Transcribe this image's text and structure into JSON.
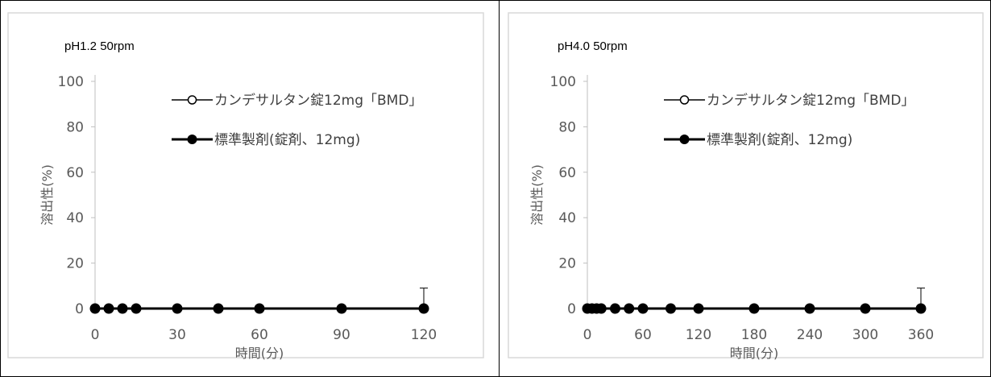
{
  "chart_data": [
    {
      "type": "line",
      "title": "pH1.2  50rpm",
      "xlabel": "時間(分)",
      "ylabel": "溶出性(%)",
      "xlim": [
        0,
        120
      ],
      "ylim": [
        0,
        100
      ],
      "xticks": [
        0,
        30,
        60,
        90,
        120
      ],
      "yticks": [
        0,
        20,
        40,
        60,
        80,
        100
      ],
      "legend_position": "top-right",
      "series": [
        {
          "name": "カンデサルタン錠12mg「BMD」",
          "marker": "open-circle",
          "x": [
            0,
            5,
            10,
            15,
            30,
            45,
            60,
            90,
            120
          ],
          "y": [
            0,
            0,
            0,
            0,
            0,
            0,
            0,
            0,
            0
          ],
          "error_upper": [
            0,
            0,
            0,
            0,
            0,
            0,
            0,
            0,
            9
          ]
        },
        {
          "name": "標準製剤(錠剤、12mg)",
          "marker": "filled-circle",
          "x": [
            0,
            5,
            10,
            15,
            30,
            45,
            60,
            90,
            120
          ],
          "y": [
            0,
            0,
            0,
            0,
            0,
            0,
            0,
            0,
            0
          ]
        }
      ]
    },
    {
      "type": "line",
      "title": "pH4.0  50rpm",
      "xlabel": "時間(分)",
      "ylabel": "溶出性(%)",
      "xlim": [
        0,
        360
      ],
      "ylim": [
        0,
        100
      ],
      "xticks": [
        0,
        60,
        120,
        180,
        240,
        300,
        360
      ],
      "yticks": [
        0,
        20,
        40,
        60,
        80,
        100
      ],
      "legend_position": "top-right",
      "series": [
        {
          "name": "カンデサルタン錠12mg「BMD」",
          "marker": "open-circle",
          "x": [
            0,
            5,
            10,
            15,
            30,
            45,
            60,
            90,
            120,
            180,
            240,
            300,
            360
          ],
          "y": [
            0,
            0,
            0,
            0,
            0,
            0,
            0,
            0,
            0,
            0,
            0,
            0,
            0
          ],
          "error_upper": [
            0,
            0,
            0,
            0,
            0,
            0,
            0,
            0,
            0,
            0,
            0,
            0,
            9
          ]
        },
        {
          "name": "標準製剤(錠剤、12mg)",
          "marker": "filled-circle",
          "x": [
            0,
            5,
            10,
            15,
            30,
            45,
            60,
            90,
            120,
            180,
            240,
            300,
            360
          ],
          "y": [
            0,
            0,
            0,
            0,
            0,
            0,
            0,
            0,
            0,
            0,
            0,
            0,
            0
          ]
        }
      ]
    }
  ]
}
